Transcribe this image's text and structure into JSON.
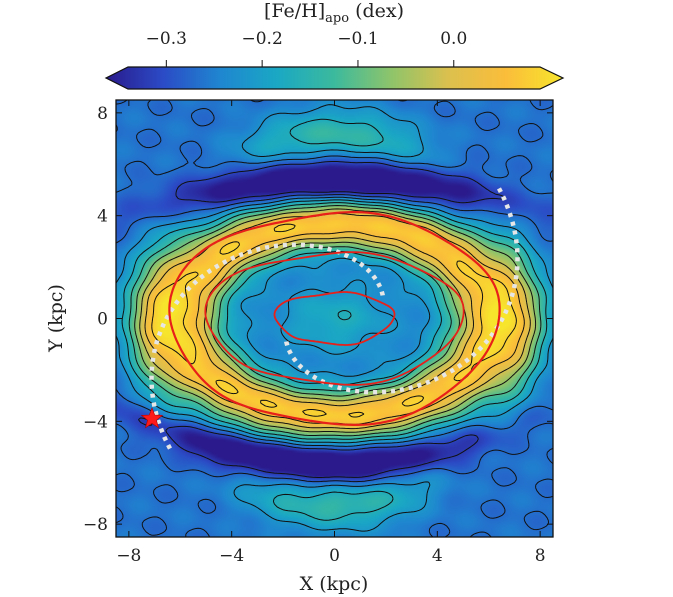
{
  "chart_data": {
    "type": "heatmap",
    "title": "",
    "colorbar": {
      "label": "[Fe/H]",
      "label_sub": "apo",
      "label_unit": " (dex)",
      "ticks": [
        -0.3,
        -0.2,
        -0.1,
        0.0
      ],
      "tick_labels": [
        "−0.3",
        "−0.2",
        "−0.1",
        "0.0"
      ],
      "range": [
        -0.34,
        0.09
      ],
      "extend": "both",
      "location": "top",
      "colormap": [
        "#2a1a8c",
        "#2b4bc6",
        "#1f86d0",
        "#1aa8c4",
        "#3cba9d",
        "#8fc46a",
        "#dcc04e",
        "#fbbd3a",
        "#f7e52c"
      ]
    },
    "xlabel": "X (kpc)",
    "ylabel": "Y (kpc)",
    "xlim": [
      -8.5,
      8.5
    ],
    "ylim": [
      -8.5,
      8.5
    ],
    "xticks": [
      -8,
      -4,
      0,
      4,
      8
    ],
    "yticks": [
      -8,
      -4,
      0,
      4,
      8
    ],
    "x_tick_labels": [
      "−8",
      "−4",
      "0",
      "4",
      "8"
    ],
    "y_tick_labels": [
      "−8",
      "−4",
      "0",
      "4",
      "8"
    ],
    "field": {
      "description_levels": "concentric elliptical metallicity structure",
      "center_value": -0.17,
      "ring_peak_value": 0.06,
      "ring_radius": 6.0,
      "ring_axis_ratio": 0.62,
      "outer_value": -0.25,
      "arc_value": -0.15
    },
    "marker": {
      "shape": "star",
      "x": -7.1,
      "y": -3.9,
      "color": "#ff1a1a"
    },
    "bar_outline": {
      "inner_contour": {
        "a": 2.3,
        "b": 1.0,
        "color": "#e8201a"
      },
      "outer_contour": {
        "a": 6.4,
        "b": 4.1,
        "color": "#e8201a"
      }
    },
    "spiral_arms": {
      "style": "dotted",
      "color": "#e6e6e6"
    },
    "grid": false,
    "legend": "none"
  }
}
